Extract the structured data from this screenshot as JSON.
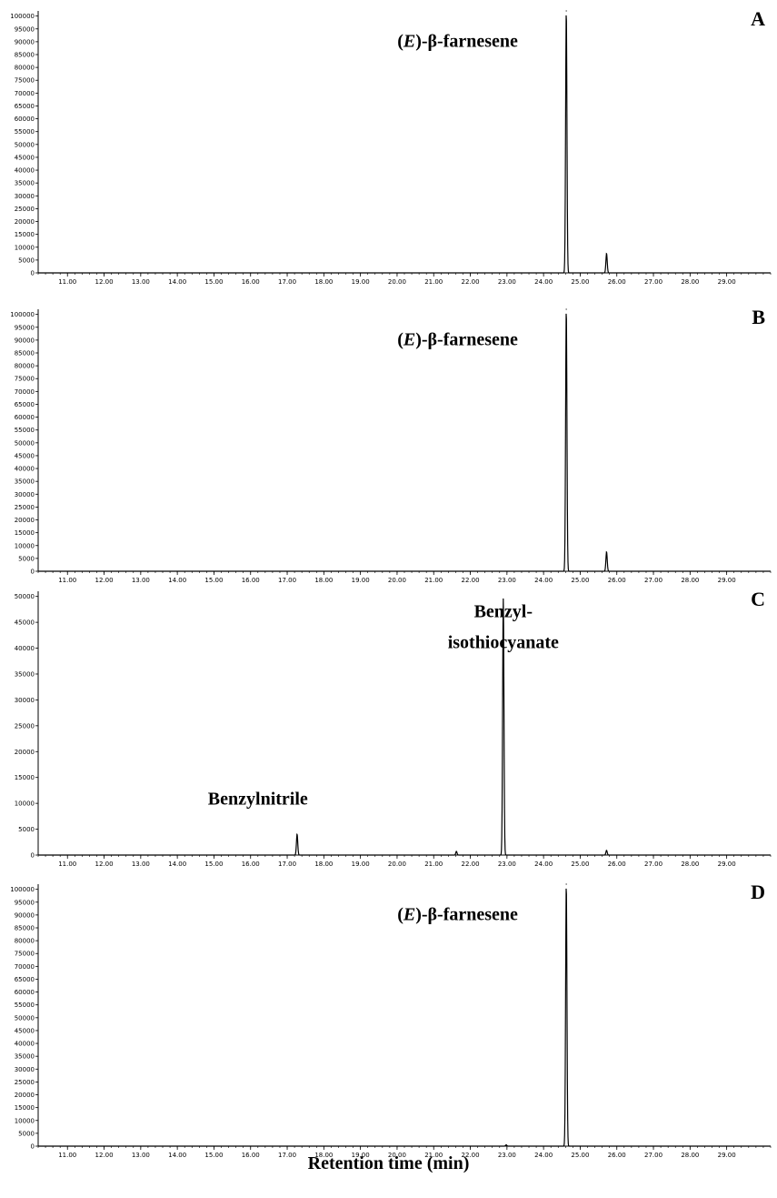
{
  "chart_data": [
    {
      "type": "line",
      "panel_label": "A",
      "x_ticks": [
        11,
        12,
        13,
        14,
        15,
        16,
        17,
        18,
        19,
        20,
        21,
        22,
        23,
        24,
        25,
        26,
        27,
        28,
        29
      ],
      "x_tick_labels": [
        "11.00",
        "12.00",
        "13.00",
        "14.00",
        "15.00",
        "16.00",
        "17.00",
        "18.00",
        "19.00",
        "20.00",
        "21.00",
        "22.00",
        "23.00",
        "24.00",
        "25.00",
        "26.00",
        "27.00",
        "28.00",
        "29.00"
      ],
      "xlim": [
        10.2,
        30.2
      ],
      "ylim": [
        0,
        102000
      ],
      "y_ticks": [
        0,
        5000,
        10000,
        15000,
        20000,
        25000,
        30000,
        35000,
        40000,
        45000,
        50000,
        55000,
        60000,
        65000,
        70000,
        75000,
        80000,
        85000,
        90000,
        95000,
        100000
      ],
      "y_tick_labels": [
        "0",
        "5000",
        "10000",
        "15000",
        "20000",
        "25000",
        "30000",
        "35000",
        "40000",
        "45000",
        "50000",
        "55000",
        "60000",
        "65000",
        "70000",
        "75000",
        "80000",
        "85000",
        "90000",
        "95000",
        "100000"
      ],
      "peaks": [
        {
          "rt": 24.62,
          "height": 102000
        },
        {
          "rt": 25.72,
          "height": 7500
        }
      ],
      "annotations": [
        {
          "text": "(E)-β-farnesene",
          "italic_prefix": "E",
          "rt": 23.3,
          "value": 88000
        }
      ]
    },
    {
      "type": "line",
      "panel_label": "B",
      "x_ticks": [
        11,
        12,
        13,
        14,
        15,
        16,
        17,
        18,
        19,
        20,
        21,
        22,
        23,
        24,
        25,
        26,
        27,
        28,
        29
      ],
      "x_tick_labels": [
        "11.00",
        "12.00",
        "13.00",
        "14.00",
        "15.00",
        "16.00",
        "17.00",
        "18.00",
        "19.00",
        "20.00",
        "21.00",
        "22.00",
        "23.00",
        "24.00",
        "25.00",
        "26.00",
        "27.00",
        "28.00",
        "29.00"
      ],
      "xlim": [
        10.2,
        30.2
      ],
      "ylim": [
        0,
        102000
      ],
      "y_ticks": [
        0,
        5000,
        10000,
        15000,
        20000,
        25000,
        30000,
        35000,
        40000,
        45000,
        50000,
        55000,
        60000,
        65000,
        70000,
        75000,
        80000,
        85000,
        90000,
        95000,
        100000
      ],
      "y_tick_labels": [
        "0",
        "5000",
        "10000",
        "15000",
        "20000",
        "25000",
        "30000",
        "35000",
        "40000",
        "45000",
        "50000",
        "55000",
        "60000",
        "65000",
        "70000",
        "75000",
        "80000",
        "85000",
        "90000",
        "95000",
        "100000"
      ],
      "peaks": [
        {
          "rt": 24.62,
          "height": 102000
        },
        {
          "rt": 25.72,
          "height": 7500
        }
      ],
      "annotations": [
        {
          "text": "(E)-β-farnesene",
          "italic_prefix": "E",
          "rt": 23.3,
          "value": 88000
        }
      ]
    },
    {
      "type": "line",
      "panel_label": "C",
      "x_ticks": [
        11,
        12,
        13,
        14,
        15,
        16,
        17,
        18,
        19,
        20,
        21,
        22,
        23,
        24,
        25,
        26,
        27,
        28,
        29
      ],
      "x_tick_labels": [
        "11.00",
        "12.00",
        "13.00",
        "14.00",
        "15.00",
        "16.00",
        "17.00",
        "18.00",
        "19.00",
        "20.00",
        "21.00",
        "22.00",
        "23.00",
        "24.00",
        "25.00",
        "26.00",
        "27.00",
        "28.00",
        "29.00"
      ],
      "xlim": [
        10.2,
        30.2
      ],
      "ylim": [
        0,
        51000
      ],
      "y_ticks": [
        0,
        5000,
        10000,
        15000,
        20000,
        25000,
        30000,
        35000,
        40000,
        45000,
        50000
      ],
      "y_tick_labels": [
        "0",
        "5000",
        "10000",
        "15000",
        "20000",
        "25000",
        "30000",
        "35000",
        "40000",
        "45000",
        "50000"
      ],
      "peaks": [
        {
          "rt": 17.27,
          "height": 4000
        },
        {
          "rt": 21.62,
          "height": 700
        },
        {
          "rt": 22.9,
          "height": 49500
        },
        {
          "rt": 25.72,
          "height": 900
        }
      ],
      "annotations": [
        {
          "text": "Benzyl-",
          "rt": 22.9,
          "value": 46000
        },
        {
          "text": "isothiocyanate",
          "rt": 22.9,
          "value": 40000
        },
        {
          "text": "Benzylnitrile",
          "rt": 16.2,
          "value": 9800
        }
      ]
    },
    {
      "type": "line",
      "panel_label": "D",
      "x_ticks": [
        11,
        12,
        13,
        14,
        15,
        16,
        17,
        18,
        19,
        20,
        21,
        22,
        23,
        24,
        25,
        26,
        27,
        28,
        29
      ],
      "x_tick_labels": [
        "11.00",
        "12.00",
        "13.00",
        "14.00",
        "15.00",
        "16.00",
        "17.00",
        "18.00",
        "19.00",
        "20.00",
        "21.00",
        "22.00",
        "23.00",
        "24.00",
        "25.00",
        "26.00",
        "27.00",
        "28.00",
        "29.00"
      ],
      "xlim": [
        10.2,
        30.2
      ],
      "ylim": [
        0,
        102000
      ],
      "y_ticks": [
        0,
        5000,
        10000,
        15000,
        20000,
        25000,
        30000,
        35000,
        40000,
        45000,
        50000,
        55000,
        60000,
        65000,
        70000,
        75000,
        80000,
        85000,
        90000,
        95000,
        100000
      ],
      "y_tick_labels": [
        "0",
        "5000",
        "10000",
        "15000",
        "20000",
        "25000",
        "30000",
        "35000",
        "40000",
        "45000",
        "50000",
        "55000",
        "60000",
        "65000",
        "70000",
        "75000",
        "80000",
        "85000",
        "90000",
        "95000",
        "100000"
      ],
      "peaks": [
        {
          "rt": 22.98,
          "height": 500
        },
        {
          "rt": 24.62,
          "height": 102000
        }
      ],
      "annotations": [
        {
          "text": "(E)-β-farnesene",
          "italic_prefix": "E",
          "rt": 23.3,
          "value": 88000
        }
      ]
    }
  ],
  "xlabel": "Retention time (min)"
}
